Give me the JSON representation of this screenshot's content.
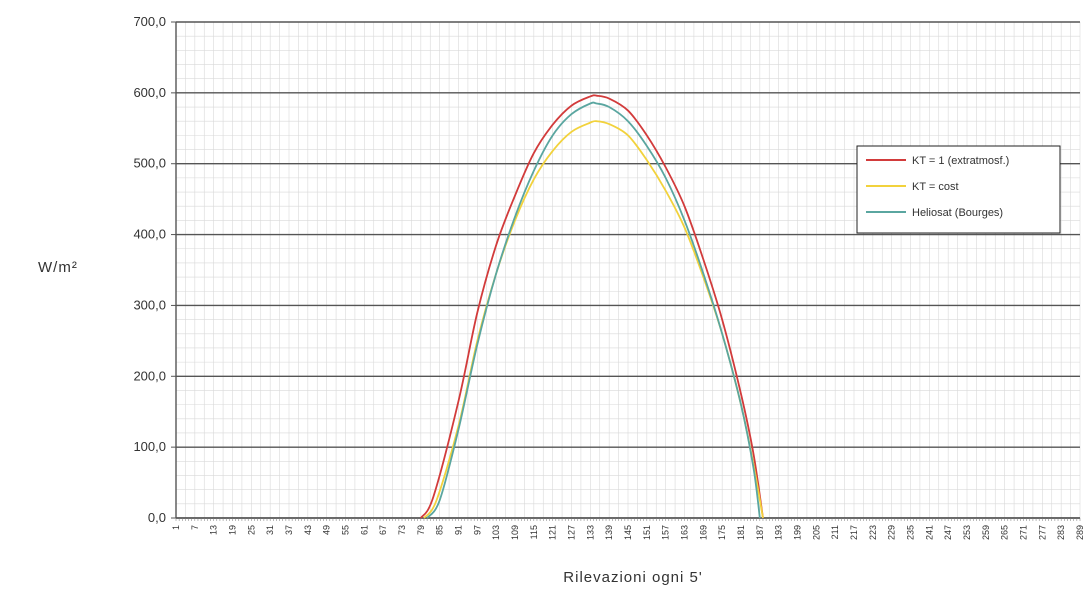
{
  "chart_data": {
    "type": "line",
    "title": "",
    "xlabel": "Rilevazioni ogni 5'",
    "ylabel": "W/m²",
    "ylim": [
      0,
      700
    ],
    "xlim": [
      1,
      289
    ],
    "grid": true,
    "legend_position": "right",
    "y_ticks": [
      "0,0",
      "100,0",
      "200,0",
      "300,0",
      "400,0",
      "500,0",
      "600,0",
      "700,0"
    ],
    "x_ticks": [
      "1",
      "7",
      "13",
      "19",
      "25",
      "31",
      "37",
      "43",
      "49",
      "55",
      "61",
      "67",
      "73",
      "79",
      "85",
      "91",
      "97",
      "103",
      "109",
      "115",
      "121",
      "127",
      "133",
      "139",
      "145",
      "151",
      "157",
      "163",
      "169",
      "175",
      "181",
      "187",
      "193",
      "199",
      "205",
      "211",
      "217",
      "223",
      "229",
      "235",
      "241",
      "247",
      "253",
      "259",
      "265",
      "271",
      "277",
      "283",
      "289"
    ],
    "series": [
      {
        "name": "KT = 1 (extratmosf.)",
        "color": "#d23b3b",
        "x": [
          79,
          83,
          91,
          97,
          103,
          109,
          115,
          121,
          127,
          133,
          135,
          139,
          145,
          151,
          157,
          163,
          169,
          175,
          181,
          185,
          188
        ],
        "y": [
          0,
          30,
          165,
          290,
          385,
          455,
          515,
          555,
          582,
          595,
          596,
          592,
          575,
          540,
          495,
          440,
          365,
          280,
          175,
          90,
          0
        ]
      },
      {
        "name": "KT = cost",
        "color": "#f2d23c",
        "x": [
          80,
          84,
          91,
          97,
          103,
          109,
          115,
          121,
          127,
          133,
          135,
          139,
          145,
          151,
          157,
          163,
          169,
          175,
          181,
          185,
          188
        ],
        "y": [
          0,
          25,
          130,
          250,
          345,
          420,
          478,
          518,
          545,
          558,
          560,
          556,
          540,
          505,
          462,
          410,
          340,
          260,
          160,
          75,
          0
        ]
      },
      {
        "name": "Heliosat (Bourges)",
        "color": "#5aa6a0",
        "x": [
          81,
          85,
          91,
          97,
          103,
          109,
          115,
          121,
          127,
          133,
          135,
          139,
          145,
          151,
          157,
          163,
          169,
          175,
          181,
          185,
          187
        ],
        "y": [
          0,
          25,
          125,
          245,
          345,
          425,
          490,
          540,
          570,
          585,
          585,
          580,
          560,
          525,
          480,
          420,
          345,
          260,
          160,
          70,
          0
        ]
      }
    ]
  }
}
